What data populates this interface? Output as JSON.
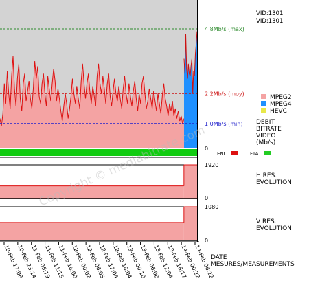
{
  "chart_data": {
    "type": "area",
    "title": "",
    "ids": [
      "VID:1301",
      "VID:1301"
    ],
    "legend": [
      {
        "label": "MPEG2",
        "color": "#f4a3a3"
      },
      {
        "label": "MPEG4",
        "color": "#1e90ff"
      },
      {
        "label": "HEVC",
        "color": "#e8e84a"
      }
    ],
    "ylabel": [
      "DEBIT",
      "BITRATE",
      "VIDEO",
      "(Mb/s)"
    ],
    "ylim": [
      0,
      4.8
    ],
    "reference_lines": [
      {
        "label": "4.8Mb/s (max)",
        "value": 4.8,
        "color": "#2e8b2e"
      },
      {
        "label": "2.2Mb/s (moy)",
        "value": 2.2,
        "color": "#cc1111"
      },
      {
        "label": "1.0Mb/s (min)",
        "value": 1.0,
        "color": "#2222cc"
      }
    ],
    "zero_label": "0",
    "status_legend": [
      {
        "label": "ENC",
        "color": "#dd1111"
      },
      {
        "label": "FTA",
        "color": "#22cc22"
      }
    ],
    "x_ticks": [
      "10-Feb 17:08",
      "10-Feb 23:14",
      "11-Feb 05:19",
      "11-Feb 11:15",
      "11-Feb 18:00",
      "12-Feb 00:02",
      "12-Feb 06:05",
      "12-Feb 12:04",
      "12-Feb 18:04",
      "13-Feb 00:10",
      "13-Feb 06:08",
      "13-Feb 12:04",
      "13-Feb 18:17",
      "14-Feb 00:22",
      "14-Feb 06:22"
    ],
    "xlabel": [
      "DATE",
      "MESURES/MEASUREMENTS"
    ],
    "mpeg2_series": [
      1.2,
      0.9,
      1.4,
      2.6,
      1.8,
      3.1,
      2.2,
      1.6,
      2.9,
      3.7,
      2.4,
      1.7,
      2.8,
      3.4,
      2.0,
      1.5,
      2.6,
      3.0,
      1.9,
      2.3,
      2.7,
      2.0,
      1.6,
      2.4,
      3.5,
      2.8,
      3.3,
      2.1,
      1.8,
      2.6,
      3.0,
      2.2,
      1.7,
      2.9,
      2.4,
      1.9,
      2.6,
      3.2,
      2.7,
      1.9,
      2.4,
      2.0,
      1.5,
      1.1,
      1.7,
      2.2,
      1.8,
      1.2,
      1.6,
      2.1,
      2.8,
      2.2,
      1.8,
      2.5,
      2.0,
      1.6,
      2.7,
      3.4,
      2.6,
      2.0,
      2.6,
      3.0,
      2.3,
      1.8,
      2.5,
      2.1,
      1.7,
      2.9,
      3.4,
      2.6,
      2.2,
      2.9,
      2.4,
      1.8,
      2.6,
      3.0,
      2.1,
      1.7,
      2.3,
      2.8,
      2.2,
      1.9,
      2.5,
      2.0,
      1.6,
      2.4,
      2.9,
      2.2,
      1.8,
      2.6,
      2.1,
      1.7,
      2.3,
      2.7,
      2.0,
      1.5,
      2.2,
      1.8,
      2.6,
      2.9,
      2.2,
      1.6,
      1.9,
      2.4,
      2.0,
      1.6,
      2.3,
      1.9,
      1.5,
      2.2,
      1.8,
      1.4,
      2.1,
      2.6,
      2.0,
      1.7,
      1.3,
      1.8,
      1.5,
      1.9,
      1.3,
      1.6,
      1.2,
      1.5,
      1.1,
      1.3,
      1.0,
      1.2
    ],
    "mpeg4_series": [
      3.6,
      3.0,
      4.6,
      3.2,
      2.8,
      3.4,
      3.0,
      2.9,
      3.3,
      3.6,
      2.2,
      3.1,
      2.9,
      3.8,
      4.2,
      4.7
    ],
    "h_res": {
      "label": [
        "H RES.",
        "EVOLUTION"
      ],
      "max_label": "1920",
      "zero_label": "0",
      "max": 1920,
      "values": [
        {
          "from": 0,
          "to": 0.93,
          "value": 720
        },
        {
          "from": 0.93,
          "to": 1.0,
          "value": 1920
        }
      ]
    },
    "v_res": {
      "label": [
        "V RES.",
        "EVOLUTION"
      ],
      "max_label": "1080",
      "zero_label": "0",
      "max": 1080,
      "values": [
        {
          "from": 0,
          "to": 0.93,
          "value": 576
        },
        {
          "from": 0.93,
          "to": 1.0,
          "value": 1080
        }
      ]
    },
    "watermark": "Copyright © mediabitrate.com"
  }
}
